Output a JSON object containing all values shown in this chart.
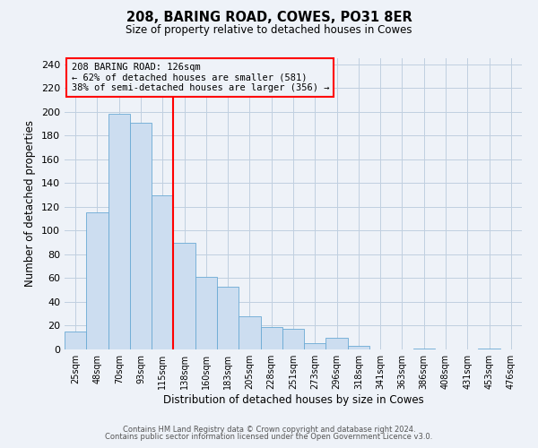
{
  "title": "208, BARING ROAD, COWES, PO31 8ER",
  "subtitle": "Size of property relative to detached houses in Cowes",
  "xlabel": "Distribution of detached houses by size in Cowes",
  "ylabel": "Number of detached properties",
  "bar_labels": [
    "25sqm",
    "48sqm",
    "70sqm",
    "93sqm",
    "115sqm",
    "138sqm",
    "160sqm",
    "183sqm",
    "205sqm",
    "228sqm",
    "251sqm",
    "273sqm",
    "296sqm",
    "318sqm",
    "341sqm",
    "363sqm",
    "386sqm",
    "408sqm",
    "431sqm",
    "453sqm",
    "476sqm"
  ],
  "bar_values": [
    15,
    115,
    198,
    191,
    130,
    90,
    61,
    53,
    28,
    19,
    17,
    5,
    10,
    3,
    0,
    0,
    1,
    0,
    0,
    1,
    0
  ],
  "bar_color": "#ccddf0",
  "bar_edgecolor": "#6aaad4",
  "vline_x_idx": 5,
  "vline_color": "red",
  "annotation_title": "208 BARING ROAD: 126sqm",
  "annotation_line1": "← 62% of detached houses are smaller (581)",
  "annotation_line2": "38% of semi-detached houses are larger (356) →",
  "annotation_box_edgecolor": "red",
  "ylim": [
    0,
    245
  ],
  "yticks": [
    0,
    20,
    40,
    60,
    80,
    100,
    120,
    140,
    160,
    180,
    200,
    220,
    240
  ],
  "footer1": "Contains HM Land Registry data © Crown copyright and database right 2024.",
  "footer2": "Contains public sector information licensed under the Open Government Licence v3.0.",
  "bg_color": "#eef2f8",
  "grid_color": "#c0cfe0"
}
